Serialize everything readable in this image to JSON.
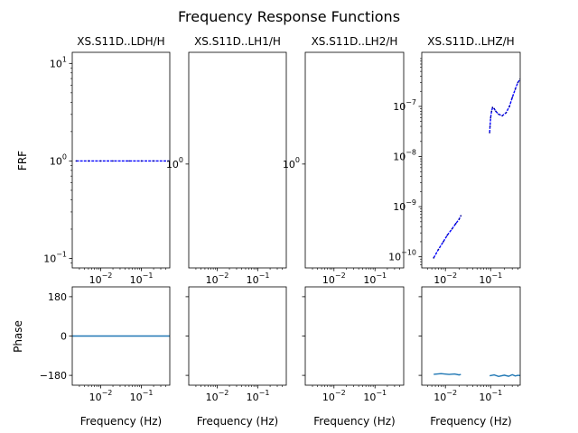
{
  "figure": {
    "title": "Frequency Response Functions"
  },
  "labels": {
    "frf_ylabel": "FRF",
    "phase_ylabel": "Phase",
    "xlabel": "Frequency (Hz)"
  },
  "colors": {
    "frf_line": "#0000ff",
    "frf_dark": "#000080",
    "phase_line": "#1f77b4",
    "axes": "#000000",
    "background": "#ffffff"
  },
  "chart_data": [
    {
      "type": "line",
      "title": "XS.S11D..LDH/H",
      "xlabel": "",
      "ylabel": "FRF",
      "xscale": "log",
      "yscale": "log",
      "xlim": [
        0.002,
        0.5
      ],
      "ylim": [
        0.08,
        13
      ],
      "xticks": [
        0.01,
        0.1
      ],
      "xticklabels": [
        "10^-2",
        "10^-1"
      ],
      "yticks": [
        0.1,
        1,
        10
      ],
      "yticklabels": [
        "10^-1",
        "10^0",
        "10^1"
      ],
      "series": [
        {
          "x": [
            0.0025,
            0.005,
            0.01,
            0.02,
            0.05,
            0.1,
            0.2,
            0.5
          ],
          "y": [
            1,
            1,
            1,
            1,
            1,
            1,
            1,
            1
          ]
        }
      ]
    },
    {
      "type": "line",
      "title": "XS.S11D..LH1/H",
      "xlabel": "",
      "ylabel": "",
      "xscale": "log",
      "yscale": "log",
      "xlim": [
        0.002,
        0.5
      ],
      "ylim": [
        0.9,
        1.12
      ],
      "xticks": [
        0.01,
        0.1
      ],
      "xticklabels": [
        "10^-2",
        "10^-1"
      ],
      "yticks": [
        1
      ],
      "yticklabels": [
        "10^0"
      ],
      "series": []
    },
    {
      "type": "line",
      "title": "XS.S11D..LH2/H",
      "xlabel": "",
      "ylabel": "",
      "xscale": "log",
      "yscale": "log",
      "xlim": [
        0.002,
        0.5
      ],
      "ylim": [
        0.9,
        1.12
      ],
      "xticks": [
        0.01,
        0.1
      ],
      "xticklabels": [
        "10^-2",
        "10^-1"
      ],
      "yticks": [
        1
      ],
      "yticklabels": [
        "10^0"
      ],
      "series": []
    },
    {
      "type": "line",
      "title": "XS.S11D..LHZ/H",
      "xlabel": "",
      "ylabel": "",
      "xscale": "log",
      "yscale": "log",
      "xlim": [
        0.003,
        0.45
      ],
      "ylim": [
        6e-11,
        1.2e-06
      ],
      "xticks": [
        0.01,
        0.1
      ],
      "xticklabels": [
        "10^-2",
        "10^-1"
      ],
      "yticks": [
        1e-10,
        1e-09,
        1e-08,
        1e-07
      ],
      "yticklabels": [
        "10^-10",
        "10^-9",
        "10^-8",
        "10^-7"
      ],
      "series": [
        {
          "x": [
            0.0055,
            0.007,
            0.009,
            0.011,
            0.014,
            0.017,
            0.02,
            0.022
          ],
          "y": [
            9.5e-11,
            1.4e-10,
            2e-10,
            2.7e-10,
            3.6e-10,
            4.6e-10,
            5.6e-10,
            6.6e-10
          ]
        },
        {
          "x": [
            0.095,
            0.097,
            0.1,
            0.105,
            0.11,
            0.12,
            0.13,
            0.15,
            0.18,
            0.22,
            0.26,
            0.3,
            0.35,
            0.4,
            0.45
          ],
          "y": [
            3e-08,
            4e-08,
            6e-08,
            8e-08,
            9.5e-08,
            9e-08,
            8e-08,
            7e-08,
            6.5e-08,
            7.5e-08,
            1e-07,
            1.5e-07,
            2.2e-07,
            3e-07,
            3.5e-07
          ]
        }
      ]
    },
    {
      "type": "line",
      "title": "",
      "xlabel": "Frequency (Hz)",
      "ylabel": "Phase",
      "xscale": "log",
      "xlim": [
        0.002,
        0.5
      ],
      "ylim": [
        -225,
        225
      ],
      "xticks": [
        0.01,
        0.1
      ],
      "xticklabels": [
        "10^-2",
        "10^-1"
      ],
      "yticks": [
        180,
        0,
        -180
      ],
      "yticklabels": [
        "180",
        "0",
        "−180"
      ],
      "series": [
        {
          "x": [
            0.002,
            0.5
          ],
          "y": [
            0,
            0
          ]
        }
      ]
    },
    {
      "type": "line",
      "title": "",
      "xlabel": "Frequency (Hz)",
      "ylabel": "",
      "xscale": "log",
      "xlim": [
        0.002,
        0.5
      ],
      "ylim": [
        -225,
        225
      ],
      "xticks": [
        0.01,
        0.1
      ],
      "xticklabels": [
        "10^-2",
        "10^-1"
      ],
      "yticks": [
        180,
        0,
        -180
      ],
      "yticklabels": [],
      "series": []
    },
    {
      "type": "line",
      "title": "",
      "xlabel": "Frequency (Hz)",
      "ylabel": "",
      "xscale": "log",
      "xlim": [
        0.002,
        0.5
      ],
      "ylim": [
        -225,
        225
      ],
      "xticks": [
        0.01,
        0.1
      ],
      "xticklabels": [
        "10^-2",
        "10^-1"
      ],
      "yticks": [
        180,
        0,
        -180
      ],
      "yticklabels": [],
      "series": []
    },
    {
      "type": "line",
      "title": "",
      "xlabel": "Frequency (Hz)",
      "ylabel": "",
      "xscale": "log",
      "xlim": [
        0.003,
        0.45
      ],
      "ylim": [
        -225,
        225
      ],
      "xticks": [
        0.01,
        0.1
      ],
      "xticklabels": [
        "10^-2",
        "10^-1"
      ],
      "yticks": [
        180,
        0,
        -180
      ],
      "yticklabels": [],
      "series": [
        {
          "x": [
            0.0055,
            0.008,
            0.012,
            0.016,
            0.02,
            0.022
          ],
          "y": [
            -175,
            -172,
            -176,
            -174,
            -178,
            -176
          ]
        },
        {
          "x": [
            0.095,
            0.12,
            0.15,
            0.2,
            0.25,
            0.3,
            0.35,
            0.4,
            0.45
          ],
          "y": [
            -182,
            -178,
            -185,
            -179,
            -184,
            -177,
            -183,
            -180,
            -181
          ]
        }
      ]
    }
  ]
}
